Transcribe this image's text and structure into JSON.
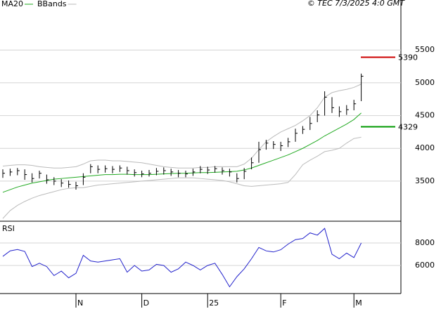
{
  "chart_data": [
    {
      "type": "ohlc",
      "source": "© TEC 7/3/2025 4:0 GMT",
      "high": [
        3680,
        3690,
        3700,
        3680,
        3620,
        3660,
        3600,
        3560,
        3530,
        3510,
        3490,
        3620,
        3760,
        3740,
        3740,
        3730,
        3740,
        3720,
        3680,
        3660,
        3670,
        3700,
        3710,
        3690,
        3670,
        3660,
        3690,
        3730,
        3720,
        3730,
        3710,
        3690,
        3620,
        3700,
        3860,
        4100,
        4130,
        4110,
        4100,
        4160,
        4300,
        4340,
        4480,
        4580,
        4870,
        4780,
        4640,
        4660,
        4740,
        5140
      ],
      "low": [
        3550,
        3580,
        3590,
        3520,
        3480,
        3540,
        3460,
        3440,
        3410,
        3400,
        3370,
        3440,
        3620,
        3620,
        3630,
        3620,
        3640,
        3600,
        3570,
        3560,
        3570,
        3590,
        3600,
        3580,
        3560,
        3560,
        3580,
        3620,
        3610,
        3630,
        3600,
        3570,
        3480,
        3530,
        3680,
        3780,
        3980,
        3990,
        3960,
        4020,
        4100,
        4220,
        4280,
        4400,
        4500,
        4540,
        4480,
        4510,
        4580,
        4720
      ],
      "close": [
        3620,
        3640,
        3660,
        3600,
        3540,
        3620,
        3520,
        3500,
        3470,
        3450,
        3430,
        3560,
        3720,
        3680,
        3690,
        3680,
        3700,
        3660,
        3630,
        3610,
        3620,
        3650,
        3660,
        3640,
        3620,
        3610,
        3640,
        3680,
        3670,
        3690,
        3660,
        3640,
        3540,
        3650,
        3780,
        3980,
        4080,
        4060,
        4040,
        4100,
        4230,
        4290,
        4380,
        4510,
        4780,
        4620,
        4560,
        4590,
        4680,
        5100
      ],
      "color": "#000000",
      "series": [
        {
          "name": "MA20",
          "color": "#22aa22",
          "values": [
            3330,
            3370,
            3410,
            3440,
            3470,
            3490,
            3510,
            3530,
            3540,
            3550,
            3560,
            3570,
            3580,
            3590,
            3600,
            3600,
            3605,
            3605,
            3600,
            3600,
            3600,
            3605,
            3610,
            3615,
            3620,
            3620,
            3625,
            3630,
            3630,
            3635,
            3640,
            3645,
            3650,
            3670,
            3700,
            3740,
            3780,
            3820,
            3860,
            3900,
            3950,
            4000,
            4060,
            4120,
            4190,
            4250,
            4310,
            4370,
            4440,
            4540
          ]
        },
        {
          "name": "BBands",
          "color": "#bbbbbb",
          "upper": [
            3730,
            3740,
            3750,
            3750,
            3740,
            3720,
            3710,
            3700,
            3700,
            3710,
            3720,
            3760,
            3810,
            3820,
            3820,
            3810,
            3810,
            3800,
            3790,
            3780,
            3760,
            3740,
            3720,
            3710,
            3700,
            3700,
            3700,
            3710,
            3710,
            3720,
            3720,
            3720,
            3720,
            3760,
            3850,
            3980,
            4100,
            4180,
            4250,
            4300,
            4350,
            4420,
            4500,
            4620,
            4780,
            4850,
            4880,
            4900,
            4930,
            4980
          ],
          "lower": [
            2930,
            3050,
            3130,
            3190,
            3240,
            3280,
            3310,
            3340,
            3370,
            3390,
            3400,
            3400,
            3420,
            3440,
            3450,
            3460,
            3470,
            3480,
            3490,
            3500,
            3510,
            3520,
            3530,
            3540,
            3550,
            3550,
            3550,
            3540,
            3530,
            3520,
            3510,
            3490,
            3460,
            3430,
            3420,
            3430,
            3440,
            3450,
            3460,
            3480,
            3600,
            3750,
            3820,
            3880,
            3950,
            3970,
            4000,
            4080,
            4150,
            4170
          ]
        }
      ],
      "annotations": [
        {
          "value": 5390,
          "color": "#cc0000"
        },
        {
          "value": 4329,
          "color": "#009900"
        }
      ],
      "ylim": [
        2910,
        6070
      ],
      "yticks": [
        3500,
        4000,
        4500,
        5000,
        5500
      ],
      "grid": true
    },
    {
      "type": "line",
      "title": "RSI",
      "categories": [
        null,
        null,
        null,
        null,
        null,
        null,
        null,
        null,
        null,
        null,
        "N",
        null,
        null,
        null,
        null,
        null,
        null,
        null,
        null,
        "D",
        null,
        null,
        null,
        null,
        null,
        null,
        null,
        null,
        "25",
        null,
        null,
        null,
        null,
        null,
        null,
        null,
        null,
        null,
        "F",
        null,
        null,
        null,
        null,
        null,
        null,
        null,
        null,
        null,
        "M",
        null
      ],
      "values": [
        6810,
        7300,
        7420,
        7250,
        5900,
        6200,
        5900,
        5100,
        5500,
        4900,
        5300,
        6900,
        6400,
        6300,
        6400,
        6500,
        6600,
        5400,
        6000,
        5500,
        5600,
        6100,
        6000,
        5400,
        5700,
        6300,
        6000,
        5600,
        6000,
        6200,
        5200,
        4100,
        5000,
        5700,
        6600,
        7600,
        7300,
        7200,
        7400,
        7900,
        8300,
        8400,
        8900,
        8700,
        9300,
        7000,
        6600,
        7100,
        6700,
        8000
      ],
      "color": "#2222cc",
      "ylim": [
        3500,
        9875
      ],
      "yticks": [
        6000,
        8000
      ],
      "grid": true
    }
  ]
}
